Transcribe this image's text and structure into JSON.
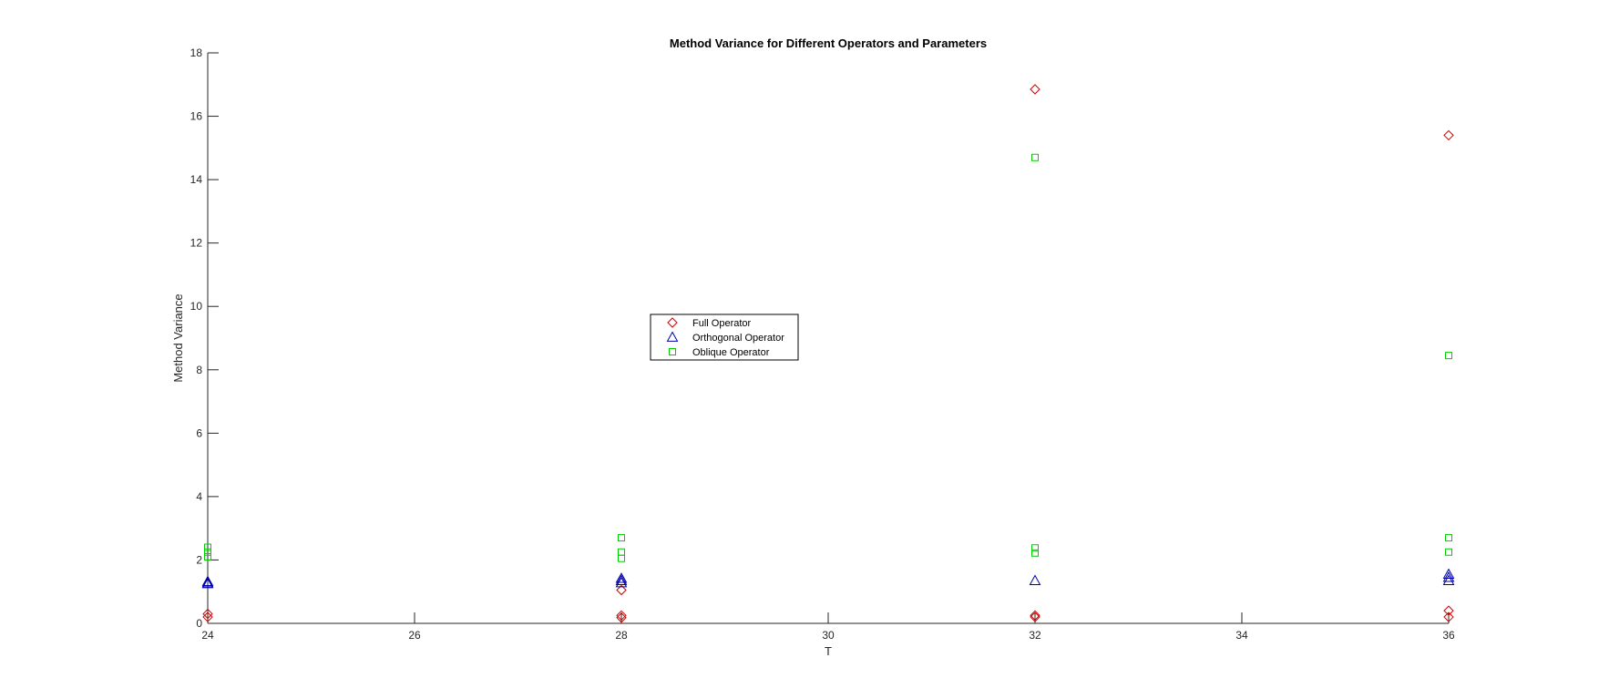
{
  "chart_data": {
    "type": "scatter",
    "title": "Method Variance for Different Operators and Parameters",
    "xlabel": "T",
    "ylabel": "Method Variance",
    "xlim": [
      24,
      36
    ],
    "ylim": [
      0,
      18
    ],
    "xticks": [
      24,
      26,
      28,
      30,
      32,
      34,
      36
    ],
    "yticks": [
      0,
      2,
      4,
      6,
      8,
      10,
      12,
      14,
      16,
      18
    ],
    "grid": false,
    "legend_position": "center-left",
    "series": [
      {
        "name": "Full Operator",
        "marker": "diamond",
        "color": "#cc0000",
        "points": [
          {
            "x": 24,
            "y": 0.3
          },
          {
            "x": 24,
            "y": 0.2
          },
          {
            "x": 28,
            "y": 1.05
          },
          {
            "x": 28,
            "y": 0.25
          },
          {
            "x": 28,
            "y": 0.18
          },
          {
            "x": 32,
            "y": 16.85
          },
          {
            "x": 32,
            "y": 0.25
          },
          {
            "x": 32,
            "y": 0.2
          },
          {
            "x": 36,
            "y": 15.4
          },
          {
            "x": 36,
            "y": 0.4
          },
          {
            "x": 36,
            "y": 0.2
          }
        ]
      },
      {
        "name": "Orthogonal Operator",
        "marker": "triangle",
        "color": "#0000aa",
        "points": [
          {
            "x": 24,
            "y": 1.32
          },
          {
            "x": 24,
            "y": 1.28
          },
          {
            "x": 24,
            "y": 1.25
          },
          {
            "x": 28,
            "y": 1.42
          },
          {
            "x": 28,
            "y": 1.35
          },
          {
            "x": 28,
            "y": 1.28
          },
          {
            "x": 32,
            "y": 1.35
          },
          {
            "x": 36,
            "y": 1.55
          },
          {
            "x": 36,
            "y": 1.45
          },
          {
            "x": 36,
            "y": 1.35
          }
        ]
      },
      {
        "name": "Oblique Operator",
        "marker": "square",
        "color": "#00cc00",
        "points": [
          {
            "x": 24,
            "y": 2.4
          },
          {
            "x": 24,
            "y": 2.25
          },
          {
            "x": 24,
            "y": 2.1
          },
          {
            "x": 28,
            "y": 2.7
          },
          {
            "x": 28,
            "y": 2.25
          },
          {
            "x": 28,
            "y": 2.05
          },
          {
            "x": 32,
            "y": 14.7
          },
          {
            "x": 32,
            "y": 2.38
          },
          {
            "x": 32,
            "y": 2.22
          },
          {
            "x": 36,
            "y": 8.45
          },
          {
            "x": 36,
            "y": 2.7
          },
          {
            "x": 36,
            "y": 2.25
          }
        ]
      }
    ]
  }
}
